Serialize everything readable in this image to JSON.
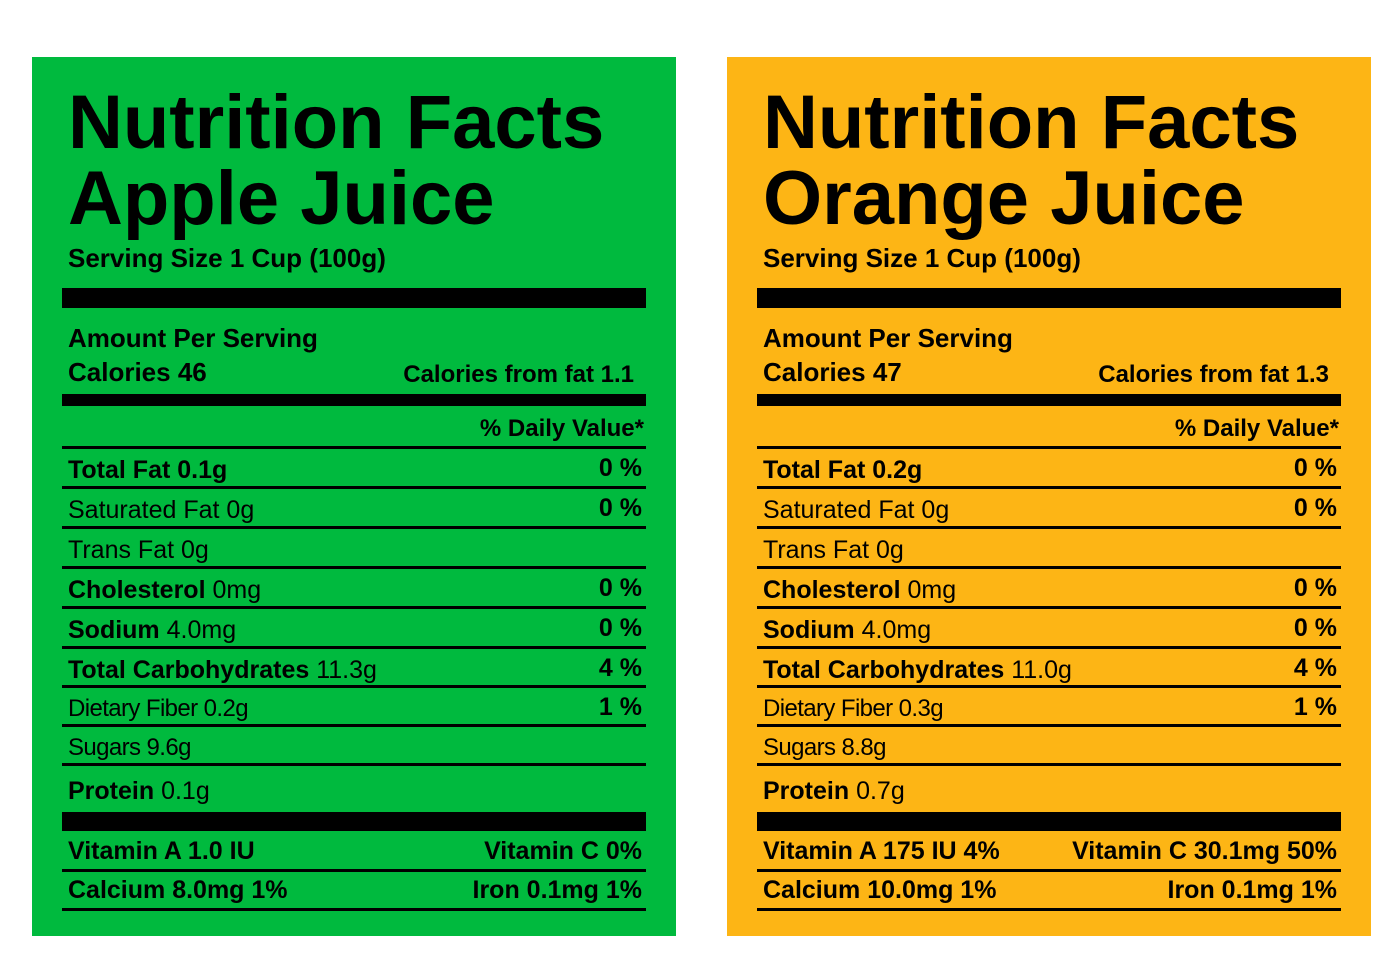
{
  "labels": [
    {
      "title": "Nutrition Facts",
      "product": "Apple Juice",
      "background": "#00BA3E",
      "serving": "Serving Size 1 Cup (100g)",
      "amount_per_serving": "Amount Per Serving",
      "calories": "Calories 46",
      "calories_from_fat": "Calories from fat 1.1",
      "daily_value_header": "% Daily Value*",
      "rows": {
        "total_fat": {
          "name": "Total Fat 0.1g",
          "pct": "0 %"
        },
        "saturated_fat": {
          "name": "Saturated Fat 0g",
          "pct": "0 %"
        },
        "trans_fat": {
          "name": "Trans Fat 0g"
        },
        "cholesterol": {
          "name": "Cholesterol",
          "amount": " 0mg",
          "pct": "0 %"
        },
        "sodium": {
          "name": "Sodium",
          "amount": " 4.0mg",
          "pct": "0 %"
        },
        "total_carbohydrates": {
          "name": "Total Carbohydrates",
          "amount": " 11.3g",
          "pct": "4 %"
        },
        "dietary_fiber": {
          "name": "Dietary Fiber 0.2g",
          "pct": "1 %"
        },
        "sugars": {
          "name": "Sugars 9.6g"
        },
        "protein": {
          "name": "Protein",
          "amount": " 0.1g"
        }
      },
      "vitamins": {
        "vitamin_a": "Vitamin A 1.0 IU",
        "vitamin_c": "Vitamin C 0%",
        "calcium": "Calcium 8.0mg 1%",
        "iron": "Iron 0.1mg 1%"
      }
    },
    {
      "title": "Nutrition Facts",
      "product": "Orange Juice",
      "background": "#FDB515",
      "serving": "Serving Size 1 Cup (100g)",
      "amount_per_serving": "Amount Per Serving",
      "calories": "Calories 47",
      "calories_from_fat": "Calories from fat 1.3",
      "daily_value_header": "% Daily Value*",
      "rows": {
        "total_fat": {
          "name": "Total Fat 0.2g",
          "pct": "0 %"
        },
        "saturated_fat": {
          "name": "Saturated Fat 0g",
          "pct": "0 %"
        },
        "trans_fat": {
          "name": "Trans Fat 0g"
        },
        "cholesterol": {
          "name": "Cholesterol",
          "amount": " 0mg",
          "pct": "0 %"
        },
        "sodium": {
          "name": "Sodium",
          "amount": " 4.0mg",
          "pct": "0 %"
        },
        "total_carbohydrates": {
          "name": "Total Carbohydrates",
          "amount": " 11.0g",
          "pct": "4 %"
        },
        "dietary_fiber": {
          "name": "Dietary Fiber 0.3g",
          "pct": "1 %"
        },
        "sugars": {
          "name": "Sugars 8.8g"
        },
        "protein": {
          "name": "Protein",
          "amount": " 0.7g"
        }
      },
      "vitamins": {
        "vitamin_a": "Vitamin A 175 IU 4%",
        "vitamin_c": "Vitamin C 30.1mg 50%",
        "calcium": "Calcium 10.0mg 1%",
        "iron": "Iron 0.1mg 1%"
      }
    }
  ]
}
